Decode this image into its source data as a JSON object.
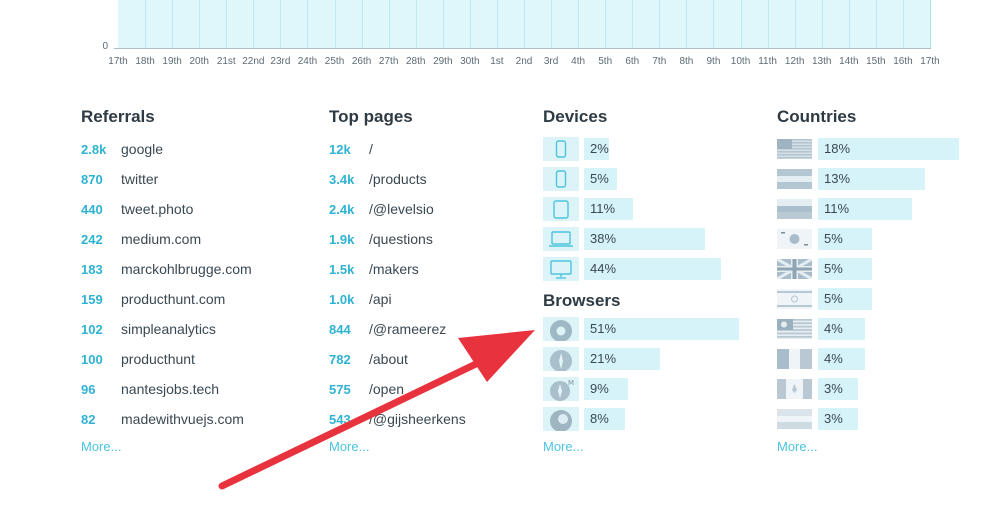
{
  "chart": {
    "y_labels": [
      "0"
    ],
    "x_ticks": [
      "17th",
      "18th",
      "19th",
      "20th",
      "21st",
      "22nd",
      "23rd",
      "24th",
      "25th",
      "26th",
      "27th",
      "28th",
      "29th",
      "30th",
      "1st",
      "2nd",
      "3rd",
      "4th",
      "5th",
      "6th",
      "7th",
      "8th",
      "9th",
      "10th",
      "11th",
      "12th",
      "13th",
      "14th",
      "15th",
      "16th",
      "17th"
    ]
  },
  "referrals": {
    "title": "Referrals",
    "items": [
      {
        "count": "2.8k",
        "label": "google"
      },
      {
        "count": "870",
        "label": "twitter"
      },
      {
        "count": "440",
        "label": "tweet.photo"
      },
      {
        "count": "242",
        "label": "medium.com"
      },
      {
        "count": "183",
        "label": "marckohlbrugge.com"
      },
      {
        "count": "159",
        "label": "producthunt.com"
      },
      {
        "count": "102",
        "label": "simpleanalytics"
      },
      {
        "count": "100",
        "label": "producthunt"
      },
      {
        "count": "96",
        "label": "nantesjobs.tech"
      },
      {
        "count": "82",
        "label": "madewithvuejs.com"
      }
    ],
    "more": "More..."
  },
  "top_pages": {
    "title": "Top pages",
    "items": [
      {
        "count": "12k",
        "label": "/"
      },
      {
        "count": "3.4k",
        "label": "/products"
      },
      {
        "count": "2.4k",
        "label": "/@levelsio"
      },
      {
        "count": "1.9k",
        "label": "/questions"
      },
      {
        "count": "1.5k",
        "label": "/makers"
      },
      {
        "count": "1.0k",
        "label": "/api"
      },
      {
        "count": "844",
        "label": "/@rameerez"
      },
      {
        "count": "782",
        "label": "/about"
      },
      {
        "count": "575",
        "label": "/open"
      },
      {
        "count": "543",
        "label": "/@gijsheerkens"
      }
    ],
    "more": "More..."
  },
  "devices": {
    "title": "Devices",
    "items": [
      {
        "icon": "phone-small-icon",
        "percent": "2%",
        "value": 0.02
      },
      {
        "icon": "phone-icon",
        "percent": "5%",
        "value": 0.05
      },
      {
        "icon": "tablet-icon",
        "percent": "11%",
        "value": 0.11
      },
      {
        "icon": "laptop-icon",
        "percent": "38%",
        "value": 0.38
      },
      {
        "icon": "desktop-icon",
        "percent": "44%",
        "value": 0.44
      }
    ]
  },
  "browsers": {
    "title": "Browsers",
    "items": [
      {
        "icon": "chrome-icon",
        "percent": "51%",
        "value": 0.51
      },
      {
        "icon": "safari-icon",
        "percent": "21%",
        "value": 0.21
      },
      {
        "icon": "safari-mobile-icon",
        "percent": "9%",
        "value": 0.09
      },
      {
        "icon": "firefox-icon",
        "percent": "8%",
        "value": 0.08
      }
    ],
    "more": "More..."
  },
  "countries": {
    "title": "Countries",
    "items": [
      {
        "flag": "usa",
        "percent": "18%",
        "value": 0.18
      },
      {
        "flag": "argentina",
        "percent": "13%",
        "value": 0.13
      },
      {
        "flag": "russia",
        "percent": "11%",
        "value": 0.11
      },
      {
        "flag": "south-korea",
        "percent": "5%",
        "value": 0.05
      },
      {
        "flag": "uk",
        "percent": "5%",
        "value": 0.05
      },
      {
        "flag": "israel",
        "percent": "5%",
        "value": 0.05
      },
      {
        "flag": "malaysia",
        "percent": "4%",
        "value": 0.04
      },
      {
        "flag": "italy",
        "percent": "4%",
        "value": 0.04
      },
      {
        "flag": "canada",
        "percent": "3%",
        "value": 0.03
      },
      {
        "flag": "netherlands",
        "percent": "3%",
        "value": 0.03
      }
    ],
    "more": "More..."
  },
  "colors": {
    "accent": "#2fb3d3",
    "bar": "#d6f3f9",
    "arrow": "#e8333f"
  }
}
